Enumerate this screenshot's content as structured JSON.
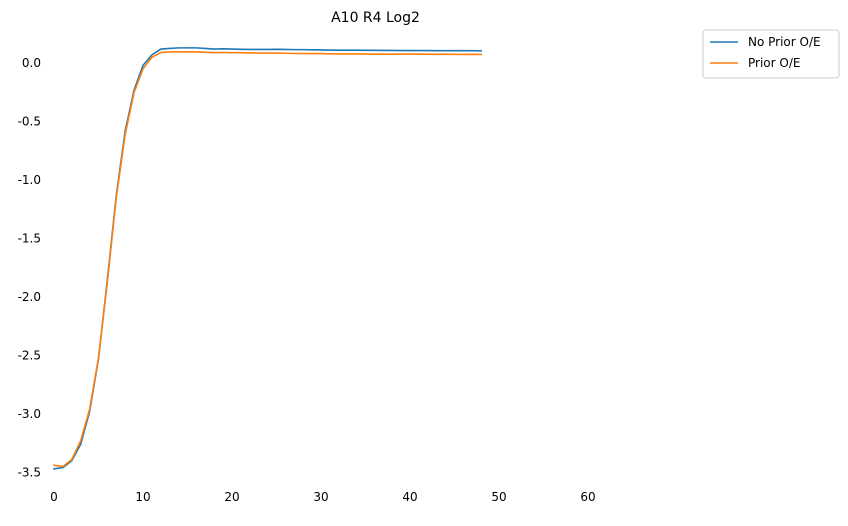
{
  "chart_data": {
    "type": "line",
    "title": "A10 R4 Log2",
    "xlabel": "",
    "ylabel": "",
    "xlim": [
      0,
      70
    ],
    "ylim": [
      -3.6,
      0.3
    ],
    "xticks": [
      0,
      10,
      20,
      30,
      40,
      50,
      60
    ],
    "yticks": [
      0.0,
      -0.5,
      -1.0,
      -1.5,
      -2.0,
      -2.5,
      -3.0,
      -3.5
    ],
    "grid": false,
    "legend_position": "top-right-outside",
    "series": [
      {
        "name": "No Prior O/E",
        "color": "#1f77b4",
        "x": [
          0,
          1,
          2,
          3,
          4,
          5,
          6,
          7,
          8,
          9,
          10,
          11,
          12,
          13,
          14,
          15,
          16,
          17,
          18,
          19,
          20,
          21,
          22,
          23,
          24,
          25,
          26,
          27,
          28,
          29,
          30,
          31,
          32,
          33,
          34,
          35,
          36,
          37,
          38,
          39,
          40,
          41,
          42,
          43,
          44,
          45,
          46,
          47,
          48
        ],
        "y": [
          -3.47,
          -3.46,
          -3.4,
          -3.26,
          -2.98,
          -2.53,
          -1.85,
          -1.13,
          -0.58,
          -0.23,
          -0.02,
          0.07,
          0.12,
          0.125,
          0.13,
          0.13,
          0.13,
          0.125,
          0.12,
          0.122,
          0.12,
          0.118,
          0.117,
          0.117,
          0.117,
          0.118,
          0.117,
          0.115,
          0.115,
          0.113,
          0.112,
          0.111,
          0.11,
          0.11,
          0.11,
          0.109,
          0.109,
          0.108,
          0.108,
          0.107,
          0.107,
          0.107,
          0.107,
          0.106,
          0.106,
          0.106,
          0.106,
          0.106,
          0.105
        ]
      },
      {
        "name": "Prior O/E",
        "color": "#ff7f0e",
        "x": [
          0,
          1,
          2,
          3,
          4,
          5,
          6,
          7,
          8,
          9,
          10,
          11,
          12,
          13,
          14,
          15,
          16,
          17,
          18,
          19,
          20,
          21,
          22,
          23,
          24,
          25,
          26,
          27,
          28,
          29,
          30,
          31,
          32,
          33,
          34,
          35,
          36,
          37,
          38,
          39,
          40,
          41,
          42,
          43,
          44,
          45,
          46,
          47,
          48
        ],
        "y": [
          -3.44,
          -3.45,
          -3.39,
          -3.23,
          -2.96,
          -2.52,
          -1.87,
          -1.15,
          -0.61,
          -0.25,
          -0.05,
          0.05,
          0.09,
          0.095,
          0.097,
          0.096,
          0.095,
          0.092,
          0.09,
          0.09,
          0.089,
          0.089,
          0.087,
          0.086,
          0.086,
          0.086,
          0.084,
          0.082,
          0.081,
          0.081,
          0.081,
          0.079,
          0.078,
          0.078,
          0.078,
          0.077,
          0.076,
          0.077,
          0.076,
          0.077,
          0.077,
          0.077,
          0.076,
          0.075,
          0.076,
          0.075,
          0.074,
          0.075,
          0.074
        ]
      }
    ]
  }
}
